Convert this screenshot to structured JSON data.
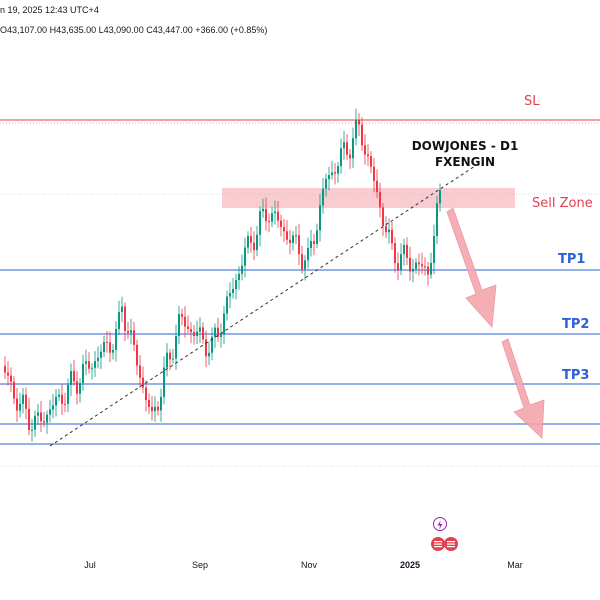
{
  "header": {
    "date_fragment": "n 19, 2025 12:43 UTC+4",
    "open_label": "O",
    "open": "43,107.00",
    "high_label": "H",
    "high": "43,635.00",
    "low_label": "L",
    "low": "43,090.00",
    "close_label": "C",
    "close": "43,447.00",
    "change": "+366.00 (+0.85%)"
  },
  "annotation": {
    "line1": "DOWJONES - D1",
    "line2": "FXENGIN"
  },
  "levels": {
    "sl": "SL",
    "sell_zone": "Sell Zone",
    "tp1": "TP1",
    "tp2": "TP2",
    "tp3": "TP3"
  },
  "x_axis": {
    "ticks": [
      "Jul",
      "Sep",
      "Nov",
      "2025",
      "Mar"
    ]
  },
  "colors": {
    "up": "#089981",
    "down": "#f23645",
    "sl_line": "#e0424f",
    "tp_line": "#2a62d6",
    "sell_zone_fill": "#f7c3c8",
    "arrow_fill": "#f6a6ae"
  },
  "icons": {
    "event_lightning": "lightning-event-icon",
    "event_flag": "us-flag-event-icon"
  },
  "chart_data": {
    "type": "candlestick",
    "symbol": "DOWJONES",
    "timeframe": "D1",
    "x_ticks": [
      "Jul",
      "Sep",
      "Nov",
      "2025",
      "Mar"
    ],
    "series": [
      {
        "name": "price_path",
        "points": [
          [
            "May",
            40000
          ],
          [
            "Jun-mid",
            39100
          ],
          [
            "Jun-end",
            38700
          ],
          [
            "Jul-mid",
            40600
          ],
          [
            "Jul-end",
            41200
          ],
          [
            "Aug-05",
            38800
          ],
          [
            "Aug-mid",
            40900
          ],
          [
            "Sep-06",
            40300
          ],
          [
            "Sep-end",
            42300
          ],
          [
            "Oct-mid",
            43200
          ],
          [
            "Oct-end",
            42100
          ],
          [
            "Nov-06",
            43800
          ],
          [
            "Nov-25",
            44900
          ],
          [
            "Dec-end",
            42300
          ],
          [
            "Jan-13",
            41900
          ],
          [
            "Jan-17",
            43447
          ]
        ]
      }
    ],
    "levels": [
      {
        "name": "SL",
        "role": "stop-loss"
      },
      {
        "name": "Sell Zone",
        "role": "sell-zone"
      },
      {
        "name": "TP1",
        "role": "take-profit"
      },
      {
        "name": "TP2",
        "role": "take-profit"
      },
      {
        "name": "TP3",
        "role": "take-profit"
      }
    ],
    "trendline": "rising support from Jun low through Jan",
    "projection": "downward arrows from Sell Zone toward TP2 and TP3",
    "grid": false,
    "legend": "none"
  }
}
